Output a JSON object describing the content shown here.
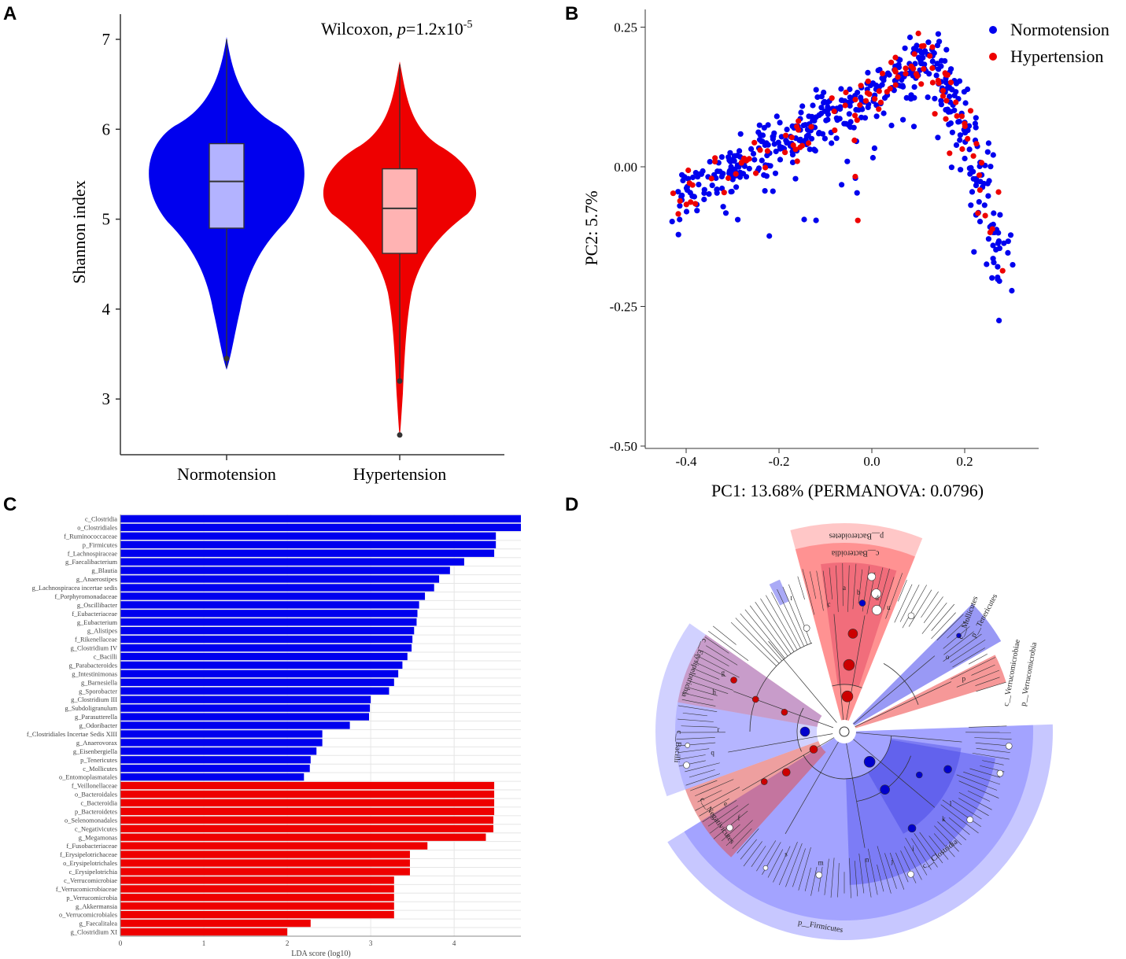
{
  "panels": {
    "a": "A",
    "b": "B",
    "c": "C",
    "d": "D"
  },
  "colors": {
    "normo": "#0000ee",
    "hyper": "#ee0000",
    "normo_box": "#b3b3ff",
    "hyper_box": "#ffb3b3"
  },
  "chart_data": [
    {
      "id": "A",
      "type": "violin",
      "ylabel": "Shannon index",
      "ylim": [
        2.4,
        7.3
      ],
      "yticks": [
        "7",
        "6",
        "5",
        "4",
        "3"
      ],
      "annotation": {
        "prefix": "Wilcoxon, ",
        "p": "p",
        "mid": "=1.2x10",
        "exp": "-5"
      },
      "categories": [
        "Normotension",
        "Hypertension"
      ],
      "box": [
        {
          "min": 3.35,
          "q1": 4.9,
          "median": 5.42,
          "q3": 5.84,
          "max": 7.0,
          "outliers": [
            3.45
          ]
        },
        {
          "min": 3.2,
          "q1": 4.62,
          "median": 5.12,
          "q3": 5.56,
          "max": 6.72,
          "outliers": [
            3.2,
            2.6
          ]
        }
      ]
    },
    {
      "id": "B",
      "type": "scatter",
      "xlabel": "PC1: 13.68% (PERMANOVA: 0.0796)",
      "ylabel": "PC2: 5.7%",
      "xlim": [
        -0.47,
        0.33
      ],
      "ylim": [
        -0.5,
        0.28
      ],
      "xticks": [
        "-0.4",
        "-0.2",
        "0.0",
        "0.2"
      ],
      "yticks": [
        "0.25",
        "0.00",
        "-0.25",
        "-0.50"
      ],
      "legend": [
        "Normotension",
        "Hypertension"
      ],
      "series": [
        {
          "name": "Normotension",
          "n": 480
        },
        {
          "name": "Hypertension",
          "n": 115
        }
      ]
    },
    {
      "id": "C",
      "type": "bar",
      "xlabel": "LDA score (log10)",
      "xlim": [
        0,
        4.8
      ],
      "xticks": [
        "0",
        "1",
        "2",
        "3",
        "4"
      ],
      "categories": [
        "c_Clostridia",
        "o_Clostridiales",
        "f_Ruminococcaceae",
        "p_Firmicutes",
        "f_Lachnospiraceae",
        "g_Faecalibacterium",
        "g_Blautia",
        "g_Anaerostipes",
        "g_Lachnospiracea incertae sedis",
        "f_Porphyromonadaceae",
        "g_Oscillibacter",
        "f_Eubacteriaceae",
        "g_Eubacterium",
        "g_Alistipes",
        "f_Rikenellaceae",
        "g_Clostridium IV",
        "c_Bacilli",
        "g_Parabacteroides",
        "g_Intestinimonas",
        "g_Barnesiella",
        "g_Sporobacter",
        "g_Clostridium III",
        "g_Subdoligranulum",
        "g_Parasutterella",
        "g_Odoribacter",
        "f_Clostridiales Incertae Sedis XIII",
        "g_Anaerovorax",
        "g_Eisenbergiella",
        "p_Tenericutes",
        "c_Mollicutes",
        "o_Entomoplasmatales",
        "f_Veillonellaceae",
        "o_Bacteroidales",
        "c_Bacteroidia",
        "p_Bacteroidetes",
        "o_Selenomonadales",
        "c_Negativicutes",
        "g_Megamonas",
        "f_Fusobacteriaceae",
        "f_Erysipelotrichaceae",
        "o_Erysipelotrichales",
        "c_Erysipelotrichia",
        "c_Verrucomicrobiae",
        "f_Verrucomicrobiaceae",
        "p_Verrucomicrobia",
        "g_Akkermansia",
        "o_Verrucomicrobiales",
        "g_Faecalitalea",
        "g_Clostridium XI"
      ],
      "values": [
        4.8,
        4.8,
        4.5,
        4.5,
        4.48,
        4.12,
        3.95,
        3.82,
        3.76,
        3.65,
        3.58,
        3.56,
        3.55,
        3.52,
        3.5,
        3.49,
        3.44,
        3.38,
        3.33,
        3.28,
        3.22,
        3.0,
        2.99,
        2.98,
        2.75,
        2.42,
        2.42,
        2.35,
        2.28,
        2.27,
        2.2,
        4.48,
        4.48,
        4.48,
        4.48,
        4.47,
        4.47,
        4.38,
        3.68,
        3.47,
        3.47,
        3.47,
        3.28,
        3.28,
        3.28,
        3.28,
        3.28,
        2.28,
        2.0
      ],
      "group_split": 31
    },
    {
      "id": "D",
      "type": "cladogram",
      "clade_labels": [
        {
          "id": "bacteroidetes",
          "text": "p__Bacteroidetes"
        },
        {
          "id": "bacteroidia",
          "text": "c__Bacteroidia"
        },
        {
          "id": "clostridia",
          "text": "c__Clostridia"
        },
        {
          "id": "firmicutes",
          "text": "p__Firmicutes"
        },
        {
          "id": "bacilli",
          "text": "c__Bacilli"
        },
        {
          "id": "negativicutes",
          "text": "c__Negativicutes"
        },
        {
          "id": "erysipelotrichia",
          "text": "c__Erysipelotrichia"
        },
        {
          "id": "mollicutes",
          "text": "c__Mollicutes"
        },
        {
          "id": "tenericutes",
          "text": "p__Tenericutes"
        },
        {
          "id": "verrucomicrobiae",
          "text": "c__Verrucomicrobiae"
        },
        {
          "id": "verrucomicrobia",
          "text": "p__Verrucomicrobia"
        }
      ],
      "node_letters": [
        "a",
        "b",
        "c",
        "d",
        "e",
        "f",
        "g",
        "h",
        "i",
        "j",
        "k",
        "l",
        "m",
        "n",
        "o",
        "p",
        "q",
        "r",
        "s",
        "t",
        "u"
      ]
    }
  ]
}
